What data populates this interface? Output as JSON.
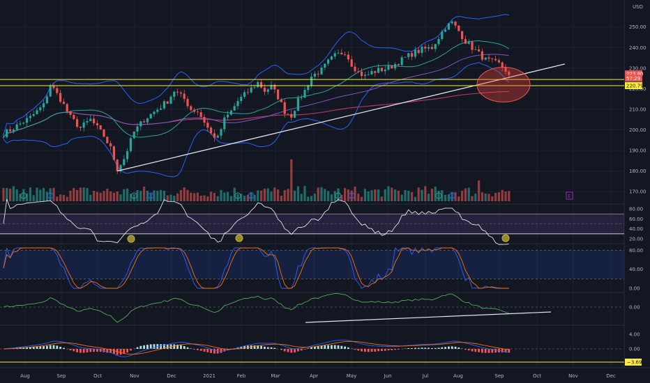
{
  "currency": "USD",
  "chart_data": [
    {
      "type": "candlestick",
      "x_ticks": [
        "Aug",
        "Sep",
        "Oct",
        "Nov",
        "Dec",
        "2021",
        "Feb",
        "Mar",
        "Apr",
        "May",
        "Jun",
        "Jul",
        "Aug",
        "Sep",
        "Oct",
        "Nov",
        "Dec"
      ],
      "price_ticks": [
        "250.00",
        "240.00",
        "230.00",
        "220.00",
        "210.00",
        "200.00",
        "190.00",
        "180.00",
        "170.00"
      ],
      "ylim": [
        165,
        257
      ],
      "close_path": [
        [
          0,
          198
        ],
        [
          4,
          202
        ],
        [
          8,
          206
        ],
        [
          12,
          212
        ],
        [
          14,
          222
        ],
        [
          17,
          215
        ],
        [
          20,
          206
        ],
        [
          23,
          201
        ],
        [
          26,
          205
        ],
        [
          30,
          197
        ],
        [
          32,
          191
        ],
        [
          34,
          181
        ],
        [
          36,
          186
        ],
        [
          39,
          199
        ],
        [
          42,
          205
        ],
        [
          46,
          210
        ],
        [
          49,
          214
        ],
        [
          51,
          219
        ],
        [
          54,
          215
        ],
        [
          56,
          210
        ],
        [
          58,
          209
        ],
        [
          60,
          204
        ],
        [
          62,
          198
        ],
        [
          64,
          196
        ],
        [
          66,
          205
        ],
        [
          68,
          209
        ],
        [
          70,
          214
        ],
        [
          72,
          217
        ],
        [
          74,
          220
        ],
        [
          76,
          223
        ],
        [
          78,
          219
        ],
        [
          80,
          221
        ],
        [
          82,
          216
        ],
        [
          84,
          209
        ],
        [
          86,
          207
        ],
        [
          88,
          214
        ],
        [
          90,
          219
        ],
        [
          92,
          226
        ],
        [
          95,
          229
        ],
        [
          97,
          233
        ],
        [
          99,
          236
        ],
        [
          102,
          238
        ],
        [
          104,
          232
        ],
        [
          106,
          228
        ],
        [
          108,
          226
        ],
        [
          110,
          228
        ],
        [
          112,
          229
        ],
        [
          115,
          230
        ],
        [
          118,
          233
        ],
        [
          120,
          235
        ],
        [
          122,
          237
        ],
        [
          125,
          239
        ],
        [
          128,
          240
        ],
        [
          130,
          245
        ],
        [
          132,
          250
        ],
        [
          134,
          252
        ],
        [
          136,
          248
        ],
        [
          138,
          243
        ],
        [
          140,
          240
        ],
        [
          142,
          237
        ],
        [
          144,
          234
        ],
        [
          146,
          233
        ],
        [
          148,
          232
        ],
        [
          150,
          229
        ],
        [
          151,
          226
        ]
      ],
      "current_price": "223.80",
      "countdown": "57:29",
      "level_price": "220.79",
      "horizontal_levels": [
        224.5,
        221.5
      ],
      "annotation": "E"
    },
    {
      "type": "line",
      "name": "RSI",
      "ticks": [
        "80.00",
        "60.00",
        "40.00",
        "20.00"
      ],
      "ylim": [
        20,
        80
      ]
    },
    {
      "type": "line",
      "name": "Stochastic",
      "ticks": [
        "80.00",
        "40.00",
        "0.00"
      ],
      "ylim": [
        0,
        85
      ]
    },
    {
      "type": "line",
      "ticks": [
        "0.00"
      ]
    },
    {
      "type": "bar",
      "name": "MACD",
      "ticks": [
        "4.00",
        "0.00"
      ],
      "current": "−3.69"
    }
  ]
}
